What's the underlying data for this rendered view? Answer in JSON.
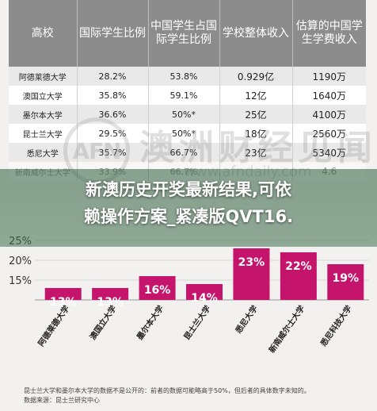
{
  "table": {
    "headers": [
      "高校",
      "国际学生比例",
      "中国学生占国际学生比例",
      "学校整体收入",
      "估算的中国学生学费收入"
    ],
    "rows": [
      [
        "阿德莱德大学",
        "28.2%",
        "53.8%",
        "0.929亿",
        "1190万"
      ],
      [
        "澳国立大学",
        "35.8%",
        "59.1%",
        "12亿",
        "1640万"
      ],
      [
        "墨尔本大学",
        "36.6%",
        "50%*",
        "25亿",
        "4100万"
      ],
      [
        "昆士兰大学",
        "29.5%",
        "50%*",
        "18亿",
        "2560万"
      ],
      [
        "悉尼大学",
        "35.7%",
        "66.7%",
        "23亿",
        "5340万"
      ],
      [
        "新南威尔士大学",
        "33.9%",
        "66.7%",
        "",
        "4.6"
      ]
    ]
  },
  "watermark": {
    "logo": "AFN",
    "text": "澳洲财经见闻",
    "url": "www.afndaily.com"
  },
  "headline": {
    "line1": "新澳历史开奖最新结果,可依",
    "line2": "赖操作方案_紧凑版QVT16."
  },
  "chart_data": {
    "type": "bar",
    "categories": [
      "阿德莱德大学",
      "澳国立大学",
      "墨尔本大学",
      "昆士兰大学",
      "悉尼大学",
      "新南威尔士大学",
      "悉尼科技大学"
    ],
    "values": [
      13,
      13,
      16,
      14,
      23,
      22,
      19
    ],
    "value_labels": [
      "13%",
      "13%",
      "16%",
      "14%",
      "23%",
      "22%",
      "19%"
    ],
    "y_ticks": [
      "15%",
      "20%",
      "25%"
    ],
    "y_tick_values": [
      15,
      20,
      25
    ],
    "ylim": [
      10,
      25
    ],
    "bar_color": "#c4146c",
    "grid": true
  },
  "footnote": {
    "line1": "昆士兰大学和墨尔本大学的数据不是公开的：前者的数据可能略高于50%，但后者的具体数字未知的。",
    "line2": "数据来源：昆士兰研究中心"
  }
}
